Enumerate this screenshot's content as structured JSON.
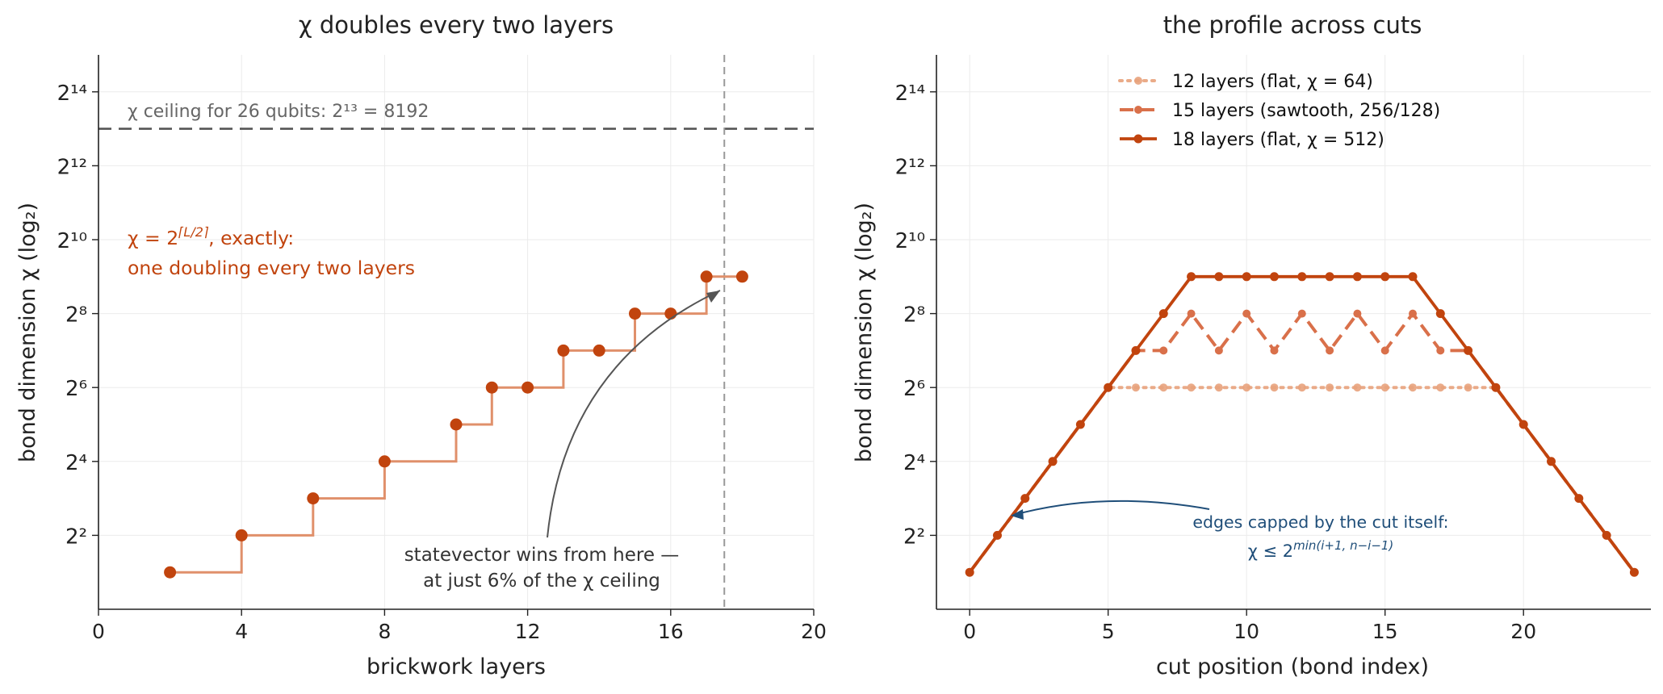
{
  "chart_data": [
    {
      "type": "line",
      "title": "χ doubles every two layers",
      "xlabel": "brickwork layers",
      "ylabel": "bond dimension χ (log₂)",
      "xlim": [
        0,
        20
      ],
      "ylim_log2": [
        0,
        15
      ],
      "x_ticks": [
        0,
        4,
        8,
        12,
        16,
        20
      ],
      "x_tick_labels": [
        "0",
        "4",
        "8",
        "12",
        "16",
        "20"
      ],
      "y_ticks_log2": [
        2,
        4,
        6,
        8,
        10,
        12,
        14
      ],
      "y_tick_labels": [
        "2²",
        "2⁴",
        "2⁶",
        "2⁸",
        "2¹⁰",
        "2¹²",
        "2¹⁴"
      ],
      "grid": true,
      "series": [
        {
          "style": "step-post",
          "color": "#c1440e",
          "x": [
            2,
            4,
            6,
            8,
            10,
            11,
            12,
            13,
            14,
            15,
            16,
            17,
            18
          ],
          "y_log2": [
            1,
            2,
            3,
            4,
            5,
            6,
            6,
            7,
            7,
            8,
            8,
            9,
            9
          ]
        }
      ],
      "reference_lines": [
        {
          "orientation": "horizontal",
          "y_log2": 13,
          "label": "χ ceiling for 26 qubits: 2¹³ = 8192",
          "color": "#555555"
        },
        {
          "orientation": "vertical",
          "x": 17.5,
          "color": "#999999"
        }
      ],
      "annotations": [
        {
          "lines": [
            "χ = 2⌈L/2⌉, exactly:",
            "one doubling every two layers"
          ],
          "color": "#c1440e"
        },
        {
          "lines": [
            "statevector wins from here —",
            "at just 6% of the χ ceiling"
          ],
          "color": "#333333",
          "arrow_to": {
            "x": 17.4,
            "y_log2": 8.8
          }
        }
      ]
    },
    {
      "type": "line",
      "title": "the profile across cuts",
      "xlabel": "cut position (bond index)",
      "ylabel": "bond dimension χ (log₂)",
      "xlim": [
        -1.2,
        24.6
      ],
      "ylim_log2": [
        0,
        15
      ],
      "x_ticks": [
        0,
        5,
        10,
        15,
        20
      ],
      "x_tick_labels": [
        "0",
        "5",
        "10",
        "15",
        "20"
      ],
      "y_ticks_log2": [
        2,
        4,
        6,
        8,
        10,
        12,
        14
      ],
      "y_tick_labels": [
        "2²",
        "2⁴",
        "2⁶",
        "2⁸",
        "2¹⁰",
        "2¹²",
        "2¹⁴"
      ],
      "grid": true,
      "legend_position": "top-center",
      "x": [
        0,
        1,
        2,
        3,
        4,
        5,
        6,
        7,
        8,
        9,
        10,
        11,
        12,
        13,
        14,
        15,
        16,
        17,
        18,
        19,
        20,
        21,
        22,
        23,
        24
      ],
      "series": [
        {
          "name": "12 layers  (flat, χ = 64)",
          "line": "dotted",
          "color": "#e8a27c",
          "y_log2": [
            1,
            2,
            3,
            4,
            5,
            6,
            6,
            6,
            6,
            6,
            6,
            6,
            6,
            6,
            6,
            6,
            6,
            6,
            6,
            6,
            5,
            4,
            3,
            2,
            1
          ]
        },
        {
          "name": "15 layers  (sawtooth, 256/128)",
          "line": "dashed",
          "color": "#d9704a",
          "y_log2": [
            1,
            2,
            3,
            4,
            5,
            6,
            7,
            7,
            8,
            7,
            8,
            7,
            8,
            7,
            8,
            7,
            8,
            7,
            7,
            6,
            5,
            4,
            3,
            2,
            1
          ]
        },
        {
          "name": "18 layers  (flat, χ = 512)",
          "line": "solid",
          "color": "#c1440e",
          "y_log2": [
            1,
            2,
            3,
            4,
            5,
            6,
            7,
            8,
            9,
            9,
            9,
            9,
            9,
            9,
            9,
            9,
            9,
            8,
            7,
            6,
            5,
            4,
            3,
            2,
            1
          ]
        }
      ],
      "annotations": [
        {
          "lines": [
            "edges capped by the cut itself:",
            "χ ≤ 2^min(i+1, n−i−1)"
          ],
          "color": "#1f4e79",
          "arrow_to": {
            "x": 2,
            "y_log2": 3
          }
        }
      ]
    }
  ],
  "annotation_text": {
    "left_formula_a": "χ = 2",
    "left_formula_sup": "⌈L/2⌉",
    "left_formula_b": ", exactly:",
    "left_formula_line2": "one doubling every two layers",
    "right_cap_line1": "edges capped by the cut itself:",
    "right_cap_base": "χ ≤ 2",
    "right_cap_sup": "min(i+1, n−i−1)"
  }
}
